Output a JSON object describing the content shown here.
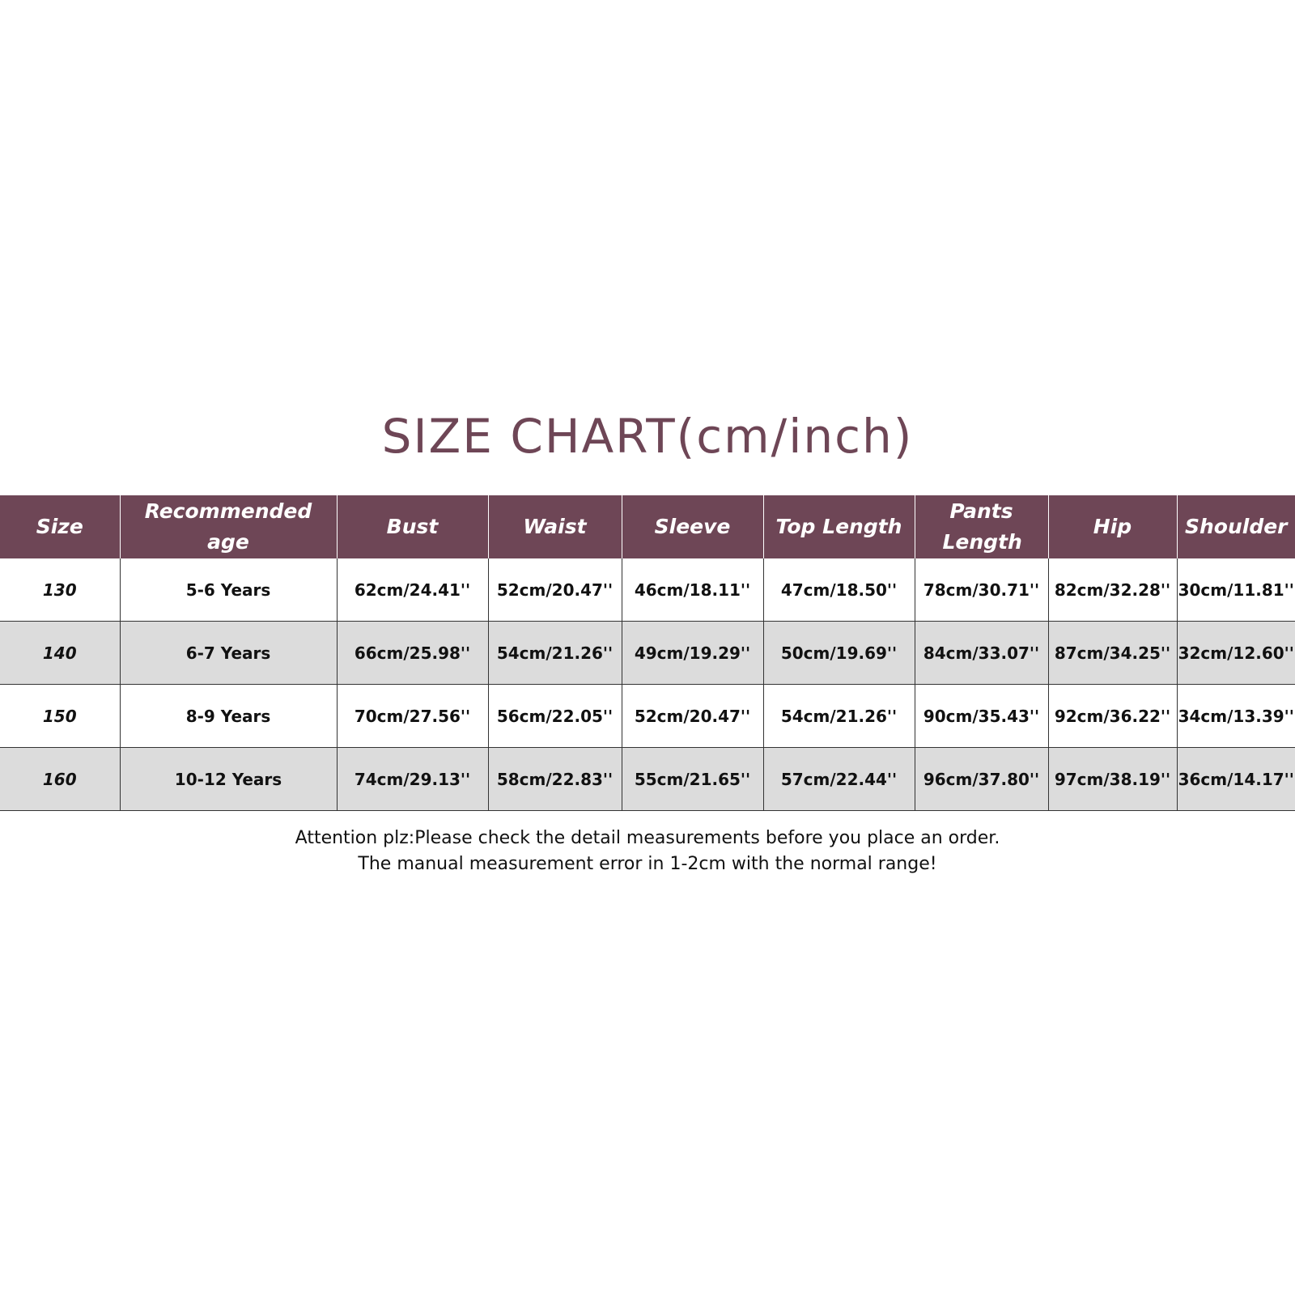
{
  "title": "SIZE CHART(cm/inch)",
  "table": {
    "header": [
      "Size",
      "Recommended age",
      "Bust",
      "Waist",
      "Sleeve",
      "Top Length",
      "Pants Length",
      "Hip",
      "Shoulder"
    ],
    "rows": [
      [
        "130",
        "5-6 Years",
        "62cm/24.41''",
        "52cm/20.47''",
        "46cm/18.11''",
        "47cm/18.50''",
        "78cm/30.71''",
        "82cm/32.28''",
        "30cm/11.81''"
      ],
      [
        "140",
        "6-7 Years",
        "66cm/25.98''",
        "54cm/21.26''",
        "49cm/19.29''",
        "50cm/19.69''",
        "84cm/33.07''",
        "87cm/34.25''",
        "32cm/12.60''"
      ],
      [
        "150",
        "8-9 Years",
        "70cm/27.56''",
        "56cm/22.05''",
        "52cm/20.47''",
        "54cm/21.26''",
        "90cm/35.43''",
        "92cm/36.22''",
        "34cm/13.39''"
      ],
      [
        "160",
        "10-12 Years",
        "74cm/29.13''",
        "58cm/22.83''",
        "55cm/21.65''",
        "57cm/22.44''",
        "96cm/37.80''",
        "97cm/38.19''",
        "36cm/14.17''"
      ]
    ]
  },
  "notes": [
    "Attention plz:Please check the detail measurements before you place an order.",
    "The manual measurement error in 1-2cm with the normal range!"
  ]
}
